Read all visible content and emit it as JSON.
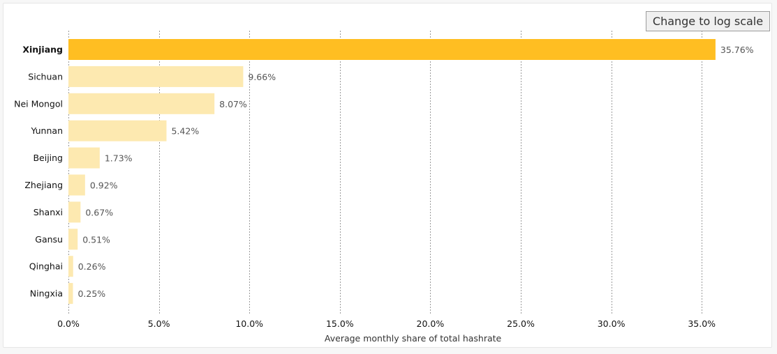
{
  "controls": {
    "scale_button_label": "Change to log scale"
  },
  "colors": {
    "highlight": "#ffbe22",
    "default_bar": "#fde9b0",
    "grid": "#9a9a9a"
  },
  "chart_data": {
    "type": "bar",
    "orientation": "horizontal",
    "categories": [
      "Xinjiang",
      "Sichuan",
      "Nei Mongol",
      "Yunnan",
      "Beijing",
      "Zhejiang",
      "Shanxi",
      "Gansu",
      "Qinghai",
      "Ningxia"
    ],
    "values": [
      35.76,
      9.66,
      8.07,
      5.42,
      1.73,
      0.92,
      0.67,
      0.51,
      0.26,
      0.25
    ],
    "value_labels": [
      "35.76%",
      "9.66%",
      "8.07%",
      "5.42%",
      "1.73%",
      "0.92%",
      "0.67%",
      "0.51%",
      "0.26%",
      "0.25%"
    ],
    "highlighted_category": "Xinjiang",
    "xlabel": "Average monthly share of total hashrate",
    "xlim": [
      0,
      37.5
    ],
    "xticks": [
      0,
      5,
      10,
      15,
      20,
      25,
      30,
      35
    ],
    "xtick_labels": [
      "0.0%",
      "5.0%",
      "10.0%",
      "15.0%",
      "20.0%",
      "25.0%",
      "30.0%",
      "35.0%"
    ],
    "grid": "vertical dotted"
  }
}
